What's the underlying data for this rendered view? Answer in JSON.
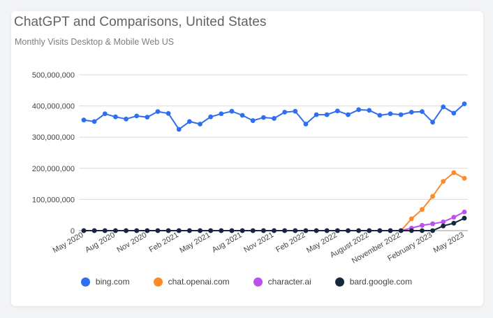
{
  "chart_data": {
    "type": "line",
    "title": "ChatGPT and Comparisons, United States",
    "subtitle": "Monthly Visits Desktop & Mobile Web US",
    "xlabel": "",
    "ylabel": "",
    "ylim": [
      0,
      500000000
    ],
    "yticks": [
      0,
      100000000,
      200000000,
      300000000,
      400000000,
      500000000
    ],
    "ytick_labels": [
      "0",
      "100,000,000",
      "200,000,000",
      "300,000,000",
      "400,000,000",
      "500,000,000"
    ],
    "grid": true,
    "legend_position": "bottom",
    "months": [
      "May 2020",
      "Jun 2020",
      "Jul 2020",
      "Aug 2020",
      "Sep 2020",
      "Oct 2020",
      "Nov 2020",
      "Dec 2020",
      "Jan 2021",
      "Feb 2021",
      "Mar 2021",
      "Apr 2021",
      "May 2021",
      "Jun 2021",
      "Jul 2021",
      "Aug 2021",
      "Sep 2021",
      "Oct 2021",
      "Nov 2021",
      "Dec 2021",
      "Jan 2022",
      "Feb 2022",
      "Mar 2022",
      "Apr 2022",
      "May 2022",
      "Jun 2022",
      "Jul 2022",
      "Aug 2022",
      "Sep 2022",
      "Oct 2022",
      "Nov 2022",
      "Dec 2022",
      "Jan 2023",
      "Feb 2023",
      "Mar 2023",
      "Apr 2023",
      "May 2023"
    ],
    "xtick_indices": [
      0,
      3,
      6,
      9,
      12,
      15,
      18,
      21,
      24,
      27,
      30,
      33,
      36
    ],
    "xtick_labels": [
      "May 2020",
      "Aug 2020",
      "Nov 2020",
      "Feb 2021",
      "May 2021",
      "Aug 2021",
      "Nov 2021",
      "Feb 2022",
      "May 2022",
      "August 2022",
      "November 2022",
      "February 2023",
      "May 2023"
    ],
    "series": [
      {
        "name": "bing.com",
        "color": "#2f6ef0",
        "values": [
          355000000,
          350000000,
          375000000,
          365000000,
          358000000,
          368000000,
          364000000,
          382000000,
          376000000,
          325000000,
          350000000,
          342000000,
          365000000,
          375000000,
          383000000,
          370000000,
          353000000,
          363000000,
          360000000,
          380000000,
          383000000,
          342000000,
          372000000,
          372000000,
          384000000,
          372000000,
          388000000,
          386000000,
          370000000,
          375000000,
          372000000,
          380000000,
          382000000,
          348000000,
          397000000,
          377000000,
          407000000
        ]
      },
      {
        "name": "chat.openai.com",
        "color": "#ff8a2a",
        "values": [
          0,
          0,
          0,
          0,
          0,
          0,
          0,
          0,
          0,
          0,
          0,
          0,
          0,
          0,
          0,
          0,
          0,
          0,
          0,
          0,
          0,
          0,
          0,
          0,
          0,
          0,
          0,
          0,
          0,
          0,
          0,
          38000000,
          68000000,
          110000000,
          158000000,
          186000000,
          168000000
        ]
      },
      {
        "name": "character.ai",
        "color": "#c04ff2",
        "values": [
          0,
          0,
          0,
          0,
          0,
          0,
          0,
          0,
          0,
          0,
          0,
          0,
          0,
          0,
          0,
          0,
          0,
          0,
          0,
          0,
          0,
          0,
          0,
          0,
          0,
          0,
          0,
          0,
          0,
          0,
          0,
          8000000,
          17000000,
          22000000,
          28000000,
          43000000,
          60000000
        ]
      },
      {
        "name": "bard.google.com",
        "color": "#14273d",
        "values": [
          0,
          0,
          0,
          0,
          0,
          0,
          0,
          0,
          0,
          0,
          0,
          0,
          0,
          0,
          0,
          0,
          0,
          0,
          0,
          0,
          0,
          0,
          0,
          0,
          0,
          0,
          0,
          0,
          0,
          0,
          0,
          0,
          0,
          0,
          15000000,
          24000000,
          40000000
        ]
      }
    ]
  }
}
